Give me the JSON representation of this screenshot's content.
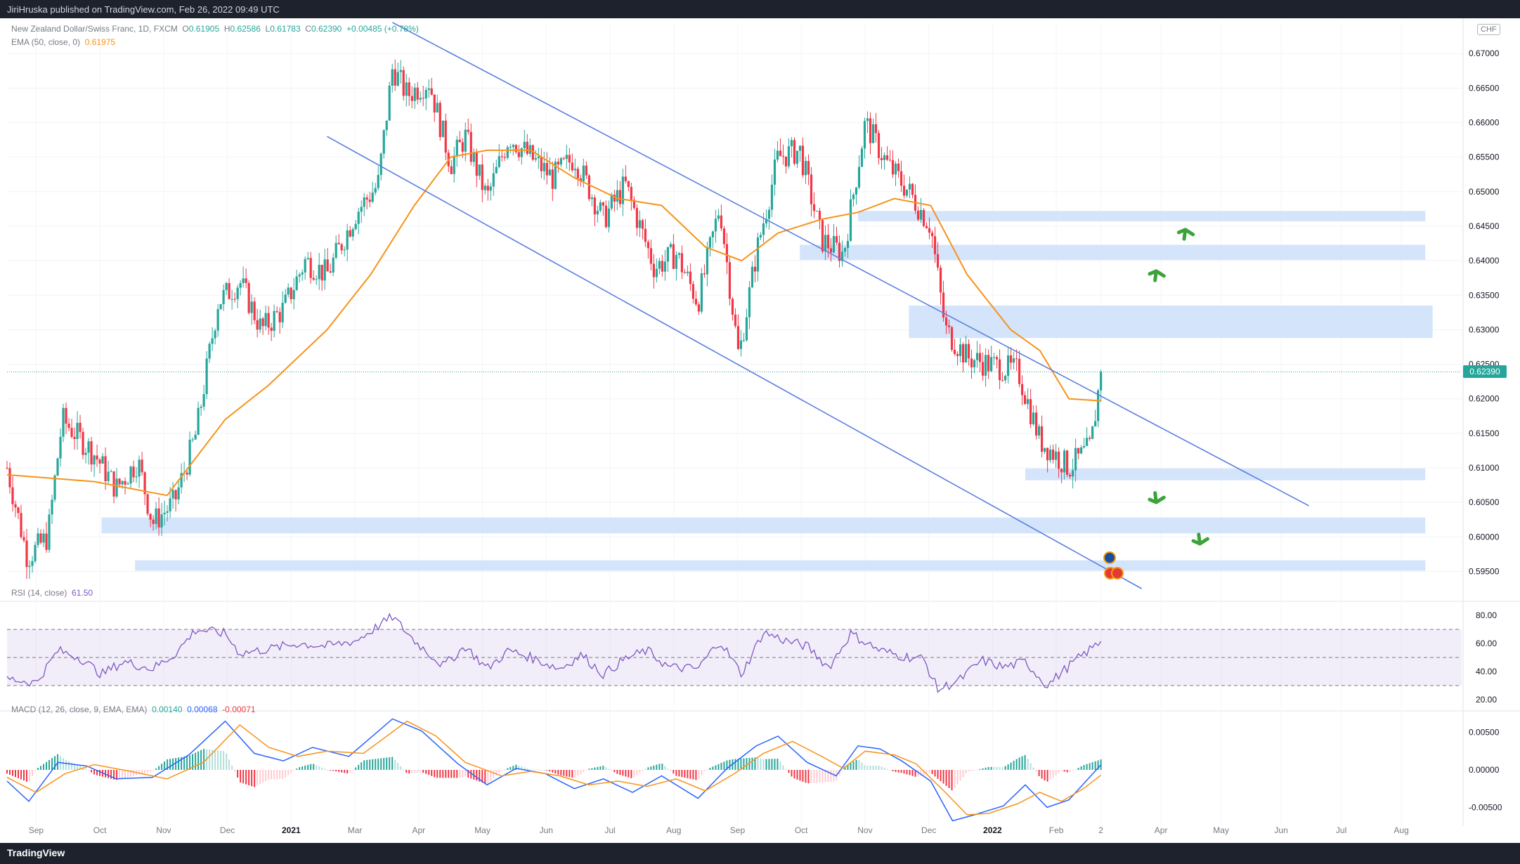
{
  "header": {
    "publisher_text": "JiriHruska published on TradingView.com, Feb 26, 2022 09:49 UTC"
  },
  "footer": {
    "logo_text": "TradingView"
  },
  "legend": {
    "symbol": "New Zealand Dollar/Swiss Franc, 1D, FXCM",
    "ohlc": {
      "o_label": "O",
      "o": "0.61905",
      "h_label": "H",
      "h": "0.62586",
      "l_label": "L",
      "l": "0.61783",
      "c_label": "C",
      "c": "0.62390",
      "chg": "+0.00485 (+0.78%)"
    },
    "ema_label": "EMA (50, close, 0)",
    "ema_value": "0.61975",
    "rsi_label": "RSI (14, close)",
    "rsi_value": "61.50",
    "macd_label": "MACD (12, 26, close, 9, EMA, EMA)",
    "macd_hist": "0.00140",
    "macd_line": "0.00068",
    "macd_signal": "-0.00071"
  },
  "currency_badge": "CHF",
  "current_price_label": "0.62390",
  "colors": {
    "up": "#26a69a",
    "down": "#f23645",
    "ema": "#f7931a",
    "channel": "#5b7fe0",
    "zone": "#cfe1fb",
    "rsi": "#7e57c2",
    "macd": "#2962ff",
    "signal": "#f7931a",
    "arrow": "#3ba33a"
  },
  "chart_data": [
    {
      "type": "candlestick",
      "title": "New Zealand Dollar/Swiss Franc, 1D, FXCM",
      "x_ticks": [
        "Sep",
        "Oct",
        "Nov",
        "Dec",
        "2021",
        "Mar",
        "Apr",
        "May",
        "Jun",
        "Jul",
        "Aug",
        "Sep",
        "Oct",
        "Nov",
        "Dec",
        "2022",
        "Feb",
        "2",
        "Apr",
        "May",
        "Jun",
        "Jul",
        "Aug"
      ],
      "y_ticks": [
        "0.67000",
        "0.66500",
        "0.66000",
        "0.65500",
        "0.65000",
        "0.64500",
        "0.64000",
        "0.63500",
        "0.63000",
        "0.62500",
        "0.62000",
        "0.61500",
        "0.61000",
        "0.60500",
        "0.60000",
        "0.59500"
      ],
      "ylim": [
        0.5925,
        0.6745
      ],
      "price_path": [
        {
          "t": 0,
          "p": 0.61
        },
        {
          "t": 0.014,
          "p": 0.597
        },
        {
          "t": 0.028,
          "p": 0.6
        },
        {
          "t": 0.038,
          "p": 0.617
        },
        {
          "t": 0.06,
          "p": 0.612
        },
        {
          "t": 0.075,
          "p": 0.607
        },
        {
          "t": 0.09,
          "p": 0.611
        },
        {
          "t": 0.1,
          "p": 0.602
        },
        {
          "t": 0.115,
          "p": 0.605
        },
        {
          "t": 0.13,
          "p": 0.615
        },
        {
          "t": 0.145,
          "p": 0.634
        },
        {
          "t": 0.16,
          "p": 0.637
        },
        {
          "t": 0.175,
          "p": 0.63
        },
        {
          "t": 0.19,
          "p": 0.633
        },
        {
          "t": 0.205,
          "p": 0.64
        },
        {
          "t": 0.22,
          "p": 0.638
        },
        {
          "t": 0.24,
          "p": 0.647
        },
        {
          "t": 0.255,
          "p": 0.651
        },
        {
          "t": 0.265,
          "p": 0.668
        },
        {
          "t": 0.275,
          "p": 0.664
        },
        {
          "t": 0.29,
          "p": 0.666
        },
        {
          "t": 0.305,
          "p": 0.654
        },
        {
          "t": 0.315,
          "p": 0.658
        },
        {
          "t": 0.33,
          "p": 0.649
        },
        {
          "t": 0.345,
          "p": 0.658
        },
        {
          "t": 0.36,
          "p": 0.655
        },
        {
          "t": 0.375,
          "p": 0.652
        },
        {
          "t": 0.39,
          "p": 0.655
        },
        {
          "t": 0.41,
          "p": 0.646
        },
        {
          "t": 0.425,
          "p": 0.651
        },
        {
          "t": 0.445,
          "p": 0.639
        },
        {
          "t": 0.46,
          "p": 0.641
        },
        {
          "t": 0.475,
          "p": 0.634
        },
        {
          "t": 0.49,
          "p": 0.648
        },
        {
          "t": 0.503,
          "p": 0.626
        },
        {
          "t": 0.515,
          "p": 0.641
        },
        {
          "t": 0.53,
          "p": 0.655
        },
        {
          "t": 0.545,
          "p": 0.656
        },
        {
          "t": 0.56,
          "p": 0.643
        },
        {
          "t": 0.575,
          "p": 0.641
        },
        {
          "t": 0.59,
          "p": 0.66
        },
        {
          "t": 0.605,
          "p": 0.654
        },
        {
          "t": 0.62,
          "p": 0.65
        },
        {
          "t": 0.635,
          "p": 0.645
        },
        {
          "t": 0.645,
          "p": 0.63
        },
        {
          "t": 0.66,
          "p": 0.626
        },
        {
          "t": 0.675,
          "p": 0.625
        },
        {
          "t": 0.695,
          "p": 0.624
        },
        {
          "t": 0.71,
          "p": 0.614
        },
        {
          "t": 0.73,
          "p": 0.61
        },
        {
          "t": 0.745,
          "p": 0.613
        },
        {
          "t": 0.752,
          "p": 0.6239
        }
      ],
      "ema50_path": [
        {
          "t": 0,
          "p": 0.609
        },
        {
          "t": 0.06,
          "p": 0.608
        },
        {
          "t": 0.11,
          "p": 0.606
        },
        {
          "t": 0.15,
          "p": 0.617
        },
        {
          "t": 0.18,
          "p": 0.622
        },
        {
          "t": 0.22,
          "p": 0.63
        },
        {
          "t": 0.25,
          "p": 0.638
        },
        {
          "t": 0.28,
          "p": 0.648
        },
        {
          "t": 0.305,
          "p": 0.655
        },
        {
          "t": 0.33,
          "p": 0.656
        },
        {
          "t": 0.36,
          "p": 0.656
        },
        {
          "t": 0.39,
          "p": 0.652
        },
        {
          "t": 0.42,
          "p": 0.649
        },
        {
          "t": 0.45,
          "p": 0.648
        },
        {
          "t": 0.48,
          "p": 0.642
        },
        {
          "t": 0.505,
          "p": 0.64
        },
        {
          "t": 0.53,
          "p": 0.644
        },
        {
          "t": 0.56,
          "p": 0.646
        },
        {
          "t": 0.585,
          "p": 0.647
        },
        {
          "t": 0.61,
          "p": 0.649
        },
        {
          "t": 0.635,
          "p": 0.648
        },
        {
          "t": 0.66,
          "p": 0.638
        },
        {
          "t": 0.69,
          "p": 0.63
        },
        {
          "t": 0.71,
          "p": 0.627
        },
        {
          "t": 0.73,
          "p": 0.62
        },
        {
          "t": 0.752,
          "p": 0.6197
        }
      ],
      "channel_upper": [
        {
          "t": 0.265,
          "p": 0.6745
        },
        {
          "t": 0.895,
          "p": 0.6045
        }
      ],
      "channel_lower": [
        {
          "t": 0.22,
          "p": 0.658
        },
        {
          "t": 0.78,
          "p": 0.5925
        }
      ],
      "zones": [
        {
          "t0": 0.585,
          "t1": 0.975,
          "lo": 0.6457,
          "hi": 0.6472
        },
        {
          "t0": 0.545,
          "t1": 0.975,
          "lo": 0.6401,
          "hi": 0.6423
        },
        {
          "t0": 0.62,
          "t1": 0.98,
          "lo": 0.6288,
          "hi": 0.6335
        },
        {
          "t0": 0.7,
          "t1": 0.975,
          "lo": 0.6082,
          "hi": 0.6099
        },
        {
          "t0": 0.065,
          "t1": 0.975,
          "lo": 0.6005,
          "hi": 0.6028
        },
        {
          "t0": 0.088,
          "t1": 0.975,
          "lo": 0.5951,
          "hi": 0.5966
        }
      ],
      "arrows": [
        {
          "t": 0.81,
          "p": 0.6445,
          "dir": "up"
        },
        {
          "t": 0.79,
          "p": 0.6385,
          "dir": "up"
        },
        {
          "t": 0.79,
          "p": 0.605,
          "dir": "down"
        },
        {
          "t": 0.82,
          "p": 0.599,
          "dir": "down"
        }
      ],
      "last_price": 0.6239
    },
    {
      "type": "line",
      "title": "RSI (14, close)",
      "y_ticks": [
        "80.00",
        "60.00",
        "40.00",
        "20.00"
      ],
      "ylim": [
        15,
        85
      ],
      "bands": [
        70,
        50,
        30
      ],
      "points": [
        {
          "t": 0,
          "v": 35
        },
        {
          "t": 0.02,
          "v": 32
        },
        {
          "t": 0.035,
          "v": 55
        },
        {
          "t": 0.05,
          "v": 50
        },
        {
          "t": 0.065,
          "v": 38
        },
        {
          "t": 0.08,
          "v": 47
        },
        {
          "t": 0.1,
          "v": 42
        },
        {
          "t": 0.115,
          "v": 52
        },
        {
          "t": 0.13,
          "v": 70
        },
        {
          "t": 0.15,
          "v": 67
        },
        {
          "t": 0.16,
          "v": 53
        },
        {
          "t": 0.18,
          "v": 56
        },
        {
          "t": 0.2,
          "v": 60
        },
        {
          "t": 0.22,
          "v": 58
        },
        {
          "t": 0.24,
          "v": 62
        },
        {
          "t": 0.265,
          "v": 79
        },
        {
          "t": 0.28,
          "v": 62
        },
        {
          "t": 0.3,
          "v": 44
        },
        {
          "t": 0.315,
          "v": 58
        },
        {
          "t": 0.33,
          "v": 42
        },
        {
          "t": 0.345,
          "v": 55
        },
        {
          "t": 0.36,
          "v": 50
        },
        {
          "t": 0.38,
          "v": 42
        },
        {
          "t": 0.395,
          "v": 52
        },
        {
          "t": 0.41,
          "v": 38
        },
        {
          "t": 0.425,
          "v": 49
        },
        {
          "t": 0.44,
          "v": 55
        },
        {
          "t": 0.455,
          "v": 43
        },
        {
          "t": 0.475,
          "v": 42
        },
        {
          "t": 0.49,
          "v": 62
        },
        {
          "t": 0.505,
          "v": 38
        },
        {
          "t": 0.52,
          "v": 68
        },
        {
          "t": 0.535,
          "v": 62
        },
        {
          "t": 0.55,
          "v": 58
        },
        {
          "t": 0.565,
          "v": 43
        },
        {
          "t": 0.58,
          "v": 67
        },
        {
          "t": 0.6,
          "v": 55
        },
        {
          "t": 0.615,
          "v": 51
        },
        {
          "t": 0.63,
          "v": 49
        },
        {
          "t": 0.64,
          "v": 27
        },
        {
          "t": 0.655,
          "v": 34
        },
        {
          "t": 0.67,
          "v": 48
        },
        {
          "t": 0.685,
          "v": 43
        },
        {
          "t": 0.7,
          "v": 47
        },
        {
          "t": 0.715,
          "v": 30
        },
        {
          "t": 0.73,
          "v": 44
        },
        {
          "t": 0.74,
          "v": 52
        },
        {
          "t": 0.752,
          "v": 61.5
        }
      ]
    },
    {
      "type": "bar+line",
      "title": "MACD (12, 26, close, 9, EMA, EMA)",
      "y_ticks": [
        "0.00500",
        "0.00000",
        "-0.00500"
      ],
      "ylim": [
        -0.0075,
        0.0075
      ],
      "macd_points": [
        {
          "t": 0,
          "v": -0.0015
        },
        {
          "t": 0.015,
          "v": -0.0042
        },
        {
          "t": 0.035,
          "v": 0.001
        },
        {
          "t": 0.055,
          "v": 0.0005
        },
        {
          "t": 0.075,
          "v": -0.0012
        },
        {
          "t": 0.1,
          "v": -0.001
        },
        {
          "t": 0.125,
          "v": 0.002
        },
        {
          "t": 0.15,
          "v": 0.0065
        },
        {
          "t": 0.17,
          "v": 0.0022
        },
        {
          "t": 0.19,
          "v": 0.0012
        },
        {
          "t": 0.21,
          "v": 0.003
        },
        {
          "t": 0.235,
          "v": 0.0018
        },
        {
          "t": 0.265,
          "v": 0.0068
        },
        {
          "t": 0.285,
          "v": 0.0052
        },
        {
          "t": 0.31,
          "v": 0.0008
        },
        {
          "t": 0.33,
          "v": -0.002
        },
        {
          "t": 0.35,
          "v": 0.0002
        },
        {
          "t": 0.37,
          "v": -0.0005
        },
        {
          "t": 0.39,
          "v": -0.0025
        },
        {
          "t": 0.41,
          "v": -0.0012
        },
        {
          "t": 0.43,
          "v": -0.003
        },
        {
          "t": 0.45,
          "v": -0.0008
        },
        {
          "t": 0.475,
          "v": -0.0038
        },
        {
          "t": 0.495,
          "v": 0.0002
        },
        {
          "t": 0.515,
          "v": 0.0032
        },
        {
          "t": 0.53,
          "v": 0.0045
        },
        {
          "t": 0.55,
          "v": 0.001
        },
        {
          "t": 0.57,
          "v": -0.0008
        },
        {
          "t": 0.585,
          "v": 0.0032
        },
        {
          "t": 0.6,
          "v": 0.0028
        },
        {
          "t": 0.615,
          "v": 0.0012
        },
        {
          "t": 0.635,
          "v": -0.0015
        },
        {
          "t": 0.65,
          "v": -0.0068
        },
        {
          "t": 0.665,
          "v": -0.006
        },
        {
          "t": 0.685,
          "v": -0.0048
        },
        {
          "t": 0.7,
          "v": -0.002
        },
        {
          "t": 0.715,
          "v": -0.005
        },
        {
          "t": 0.73,
          "v": -0.004
        },
        {
          "t": 0.752,
          "v": 0.00068
        }
      ],
      "signal_points": [
        {
          "t": 0,
          "v": -0.001
        },
        {
          "t": 0.02,
          "v": -0.003
        },
        {
          "t": 0.04,
          "v": -0.0005
        },
        {
          "t": 0.06,
          "v": 0.0007
        },
        {
          "t": 0.085,
          "v": -0.0002
        },
        {
          "t": 0.11,
          "v": -0.0012
        },
        {
          "t": 0.135,
          "v": 0.001
        },
        {
          "t": 0.16,
          "v": 0.006
        },
        {
          "t": 0.18,
          "v": 0.003
        },
        {
          "t": 0.2,
          "v": 0.0018
        },
        {
          "t": 0.22,
          "v": 0.0025
        },
        {
          "t": 0.245,
          "v": 0.0022
        },
        {
          "t": 0.275,
          "v": 0.0065
        },
        {
          "t": 0.295,
          "v": 0.0045
        },
        {
          "t": 0.315,
          "v": 0.001
        },
        {
          "t": 0.34,
          "v": -0.0008
        },
        {
          "t": 0.36,
          "v": -0.0002
        },
        {
          "t": 0.38,
          "v": -0.0008
        },
        {
          "t": 0.4,
          "v": -0.002
        },
        {
          "t": 0.42,
          "v": -0.0015
        },
        {
          "t": 0.44,
          "v": -0.0022
        },
        {
          "t": 0.46,
          "v": -0.0012
        },
        {
          "t": 0.48,
          "v": -0.0028
        },
        {
          "t": 0.5,
          "v": -0.0005
        },
        {
          "t": 0.52,
          "v": 0.0022
        },
        {
          "t": 0.54,
          "v": 0.0038
        },
        {
          "t": 0.56,
          "v": 0.0018
        },
        {
          "t": 0.575,
          "v": 0.0002
        },
        {
          "t": 0.59,
          "v": 0.0025
        },
        {
          "t": 0.61,
          "v": 0.002
        },
        {
          "t": 0.625,
          "v": 0.0008
        },
        {
          "t": 0.645,
          "v": -0.003
        },
        {
          "t": 0.66,
          "v": -0.006
        },
        {
          "t": 0.675,
          "v": -0.0058
        },
        {
          "t": 0.695,
          "v": -0.0045
        },
        {
          "t": 0.71,
          "v": -0.003
        },
        {
          "t": 0.725,
          "v": -0.0042
        },
        {
          "t": 0.74,
          "v": -0.0025
        },
        {
          "t": 0.752,
          "v": -0.00071
        }
      ],
      "last_hist": 0.0014
    }
  ]
}
